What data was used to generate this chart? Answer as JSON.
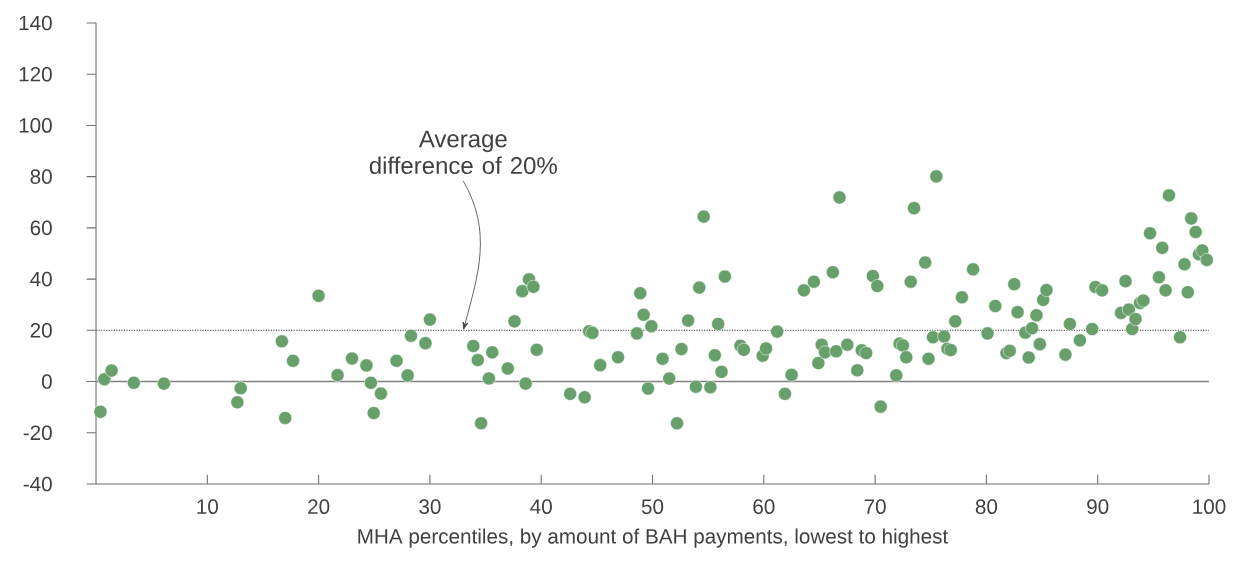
{
  "chart_data": {
    "type": "scatter",
    "xlabel": "MHA percentiles, by amount of BAH payments, lowest to highest",
    "x": [
      0.4,
      0.75,
      1.4,
      3.4,
      6.1,
      12.7,
      13.0,
      16.7,
      17.0,
      17.7,
      20.0,
      21.7,
      23.0,
      24.3,
      24.7,
      24.95,
      25.6,
      27.0,
      28.0,
      28.3,
      29.6,
      30.0,
      33.9,
      34.3,
      34.6,
      35.3,
      35.6,
      37.0,
      37.6,
      38.3,
      38.6,
      38.9,
      39.3,
      39.6,
      42.6,
      43.9,
      44.3,
      44.6,
      45.3,
      46.9,
      48.6,
      48.9,
      49.2,
      49.6,
      49.9,
      50.9,
      51.5,
      52.2,
      52.6,
      53.2,
      53.9,
      54.2,
      54.6,
      55.2,
      55.6,
      55.9,
      56.2,
      56.5,
      57.9,
      58.2,
      59.9,
      60.2,
      61.2,
      61.9,
      62.5,
      63.6,
      64.5,
      64.9,
      65.2,
      65.5,
      66.2,
      66.5,
      66.8,
      67.5,
      68.4,
      68.8,
      69.2,
      69.8,
      70.2,
      70.5,
      71.9,
      72.2,
      72.5,
      72.8,
      73.2,
      73.5,
      74.5,
      74.8,
      75.2,
      75.5,
      76.2,
      76.5,
      76.8,
      77.2,
      77.8,
      78.8,
      80.1,
      80.8,
      81.8,
      82.1,
      82.5,
      82.8,
      83.5,
      83.8,
      84.1,
      84.5,
      84.8,
      85.1,
      85.4,
      87.1,
      87.5,
      88.4,
      89.5,
      89.8,
      90.4,
      92.1,
      92.5,
      92.8,
      93.1,
      93.4,
      93.8,
      94.1,
      94.7,
      95.5,
      95.8,
      96.1,
      96.4,
      97.4,
      97.8,
      98.1,
      98.4,
      98.8,
      99.1,
      99.4,
      99.8
    ],
    "values": [
      -11.8,
      0.9,
      4.3,
      -0.5,
      -0.8,
      -8.1,
      -2.6,
      15.7,
      -14.2,
      8.1,
      33.5,
      2.5,
      9.0,
      6.3,
      -0.5,
      -12.3,
      -4.7,
      8.1,
      2.4,
      17.9,
      15.0,
      24.2,
      13.9,
      8.4,
      -16.3,
      1.2,
      11.4,
      5.1,
      23.5,
      35.3,
      -0.8,
      39.9,
      37.0,
      12.4,
      -4.8,
      -6.1,
      19.6,
      19.0,
      6.4,
      9.5,
      18.8,
      34.5,
      26.1,
      -2.7,
      21.6,
      8.9,
      1.2,
      -16.3,
      12.7,
      23.8,
      -2.0,
      36.7,
      64.4,
      -2.2,
      10.3,
      22.5,
      3.8,
      41.0,
      14.0,
      12.4,
      10.1,
      12.9,
      19.5,
      -4.8,
      2.6,
      35.6,
      39.0,
      7.2,
      14.4,
      11.4,
      42.7,
      11.8,
      71.9,
      14.4,
      4.4,
      12.2,
      11.1,
      41.2,
      37.3,
      -9.8,
      2.4,
      14.8,
      14.1,
      9.5,
      39.0,
      67.7,
      46.5,
      8.9,
      17.3,
      80.1,
      17.6,
      12.8,
      12.3,
      23.5,
      32.9,
      43.8,
      18.8,
      29.5,
      11.1,
      12.0,
      38.0,
      27.1,
      19.1,
      9.4,
      20.8,
      25.9,
      14.6,
      31.9,
      35.7,
      10.5,
      22.5,
      16.1,
      20.5,
      36.9,
      35.6,
      26.8,
      39.2,
      28.1,
      20.5,
      24.4,
      30.7,
      31.6,
      57.9,
      40.7,
      52.2,
      35.6,
      72.7,
      17.3,
      45.8,
      34.9,
      63.7,
      58.4,
      49.7,
      51.2,
      47.5
    ],
    "color": "#67a06a",
    "xlim": [
      0,
      100
    ],
    "ylim": [
      -40,
      140
    ],
    "xticks": [
      10,
      20,
      30,
      40,
      50,
      60,
      70,
      80,
      90,
      100
    ],
    "yticks": [
      -40,
      -20,
      0,
      20,
      40,
      60,
      80,
      100,
      120,
      140
    ],
    "ref_lines": [
      {
        "axis": "y",
        "value": 0,
        "color": "#808080",
        "line_style": "solid"
      },
      {
        "axis": "y",
        "value": 20,
        "color": "#606060",
        "line_style": "dotted"
      }
    ],
    "annotations": [
      {
        "text": "Average difference of 20%",
        "x": 33,
        "y": 20
      }
    ]
  }
}
